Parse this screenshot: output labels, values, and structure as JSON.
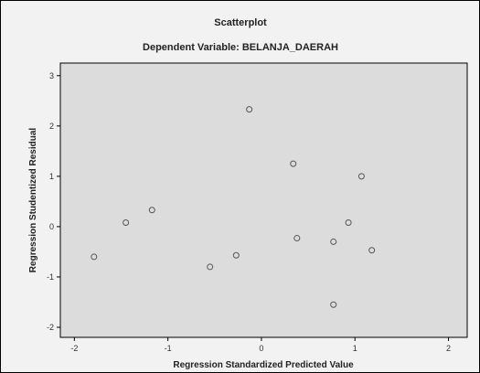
{
  "chart_data": {
    "type": "scatter",
    "title": "Scatterplot",
    "subtitle": "Dependent Variable: BELANJA_DAERAH",
    "xlabel": "Regression Standardized Predicted Value",
    "ylabel": "Regression Studentized Residual",
    "xlim": [
      -2.15,
      2.2
    ],
    "ylim": [
      -2.2,
      3.25
    ],
    "xticks": [
      -2,
      -1,
      0,
      1,
      2
    ],
    "yticks": [
      -2,
      -1,
      0,
      1,
      2,
      3
    ],
    "grid": false,
    "points": [
      {
        "x": -1.79,
        "y": -0.6
      },
      {
        "x": -1.45,
        "y": 0.08
      },
      {
        "x": -1.17,
        "y": 0.33
      },
      {
        "x": -0.55,
        "y": -0.8
      },
      {
        "x": -0.27,
        "y": -0.57
      },
      {
        "x": -0.13,
        "y": 2.33
      },
      {
        "x": 0.34,
        "y": 1.25
      },
      {
        "x": 0.38,
        "y": -0.23
      },
      {
        "x": 0.77,
        "y": -0.3
      },
      {
        "x": 0.77,
        "y": -1.55
      },
      {
        "x": 0.93,
        "y": 0.08
      },
      {
        "x": 1.07,
        "y": 1.0
      },
      {
        "x": 1.18,
        "y": -0.47
      }
    ]
  }
}
